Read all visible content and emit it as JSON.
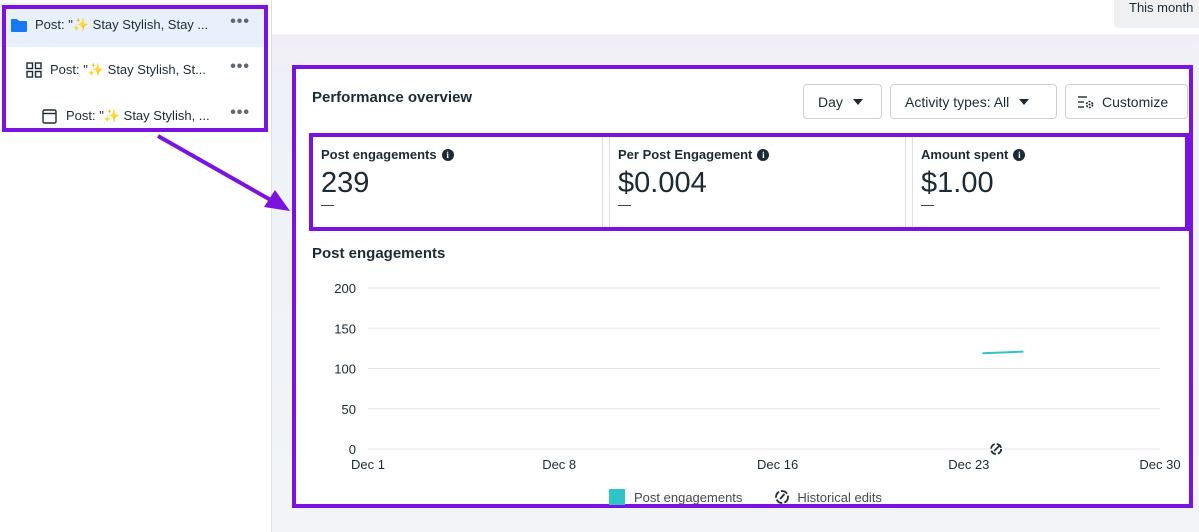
{
  "sidebar": {
    "campaign_label": "Post: \"✨ Stay Stylish, Stay ...",
    "adset_label": "Post: \"✨ Stay Stylish, St...",
    "ad_label": "Post: \"✨ Stay Stylish, ...",
    "more_label": "•••"
  },
  "header": {
    "date_range": "This month"
  },
  "performance": {
    "title": "Performance overview",
    "day_button": "Day",
    "activity_button": "Activity types: All",
    "customize_button": "Customize",
    "metrics": [
      {
        "label": "Post engagements",
        "value": "239",
        "delta": "—"
      },
      {
        "label": "Per Post Engagement",
        "value": "$0.004",
        "delta": "—"
      },
      {
        "label": "Amount spent",
        "value": "$1.00",
        "delta": "—"
      }
    ]
  },
  "chart_data": {
    "type": "line",
    "title": "Post engagements",
    "x_ticks": [
      "Dec 1",
      "Dec 8",
      "Dec 16",
      "Dec 23",
      "Dec 30"
    ],
    "y_ticks": [
      0,
      50,
      100,
      150,
      200
    ],
    "ylim": [
      0,
      200
    ],
    "xlim": [
      1,
      30
    ],
    "series": [
      {
        "name": "Post engagements",
        "color": "#2fc5c6",
        "x": [
          23.5,
          25
        ],
        "y": [
          119,
          121
        ]
      }
    ],
    "historical_edit_x": 24,
    "legend": [
      "Post engagements",
      "Historical edits"
    ]
  }
}
